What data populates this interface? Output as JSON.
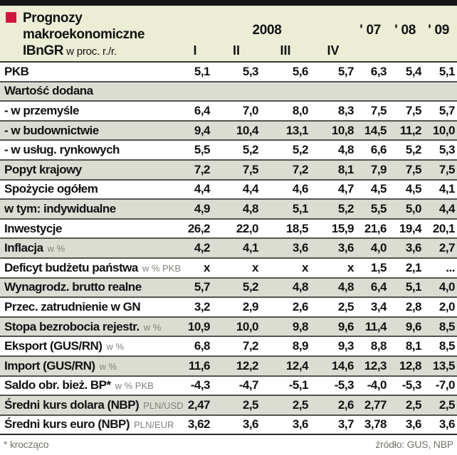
{
  "colors": {
    "header_bg": "#ECEDD5",
    "stripe_bg": "#DBDCD2",
    "accent_red": "#D3163F",
    "row_line": "#55544E",
    "muted_text": "#82827B"
  },
  "header": {
    "title_line1": "Prognozy",
    "title_line2": "makroekonomiczne",
    "title_bold3": "IBnGR",
    "title_unit": "w proc. r./r.",
    "year_span": "2008",
    "quarters": [
      "I",
      "II",
      "III",
      "IV"
    ],
    "years": [
      "' 07",
      "' 08",
      "' 09"
    ]
  },
  "table": {
    "rows": [
      {
        "label": "PKB",
        "unit": "",
        "values": [
          "5,1",
          "5,3",
          "5,6",
          "5,7",
          "6,3",
          "5,4",
          "5,1"
        ]
      },
      {
        "label": "Wartość dodana",
        "unit": "",
        "values": [
          "",
          "",
          "",
          "",
          "",
          "",
          ""
        ]
      },
      {
        "label": "- w przemyśle",
        "unit": "",
        "values": [
          "6,4",
          "7,0",
          "8,0",
          "8,3",
          "7,5",
          "7,5",
          "5,7"
        ]
      },
      {
        "label": "- w budownictwie",
        "unit": "",
        "values": [
          "9,4",
          "10,4",
          "13,1",
          "10,8",
          "14,5",
          "11,2",
          "10,0"
        ]
      },
      {
        "label": "- w usług. rynkowych",
        "unit": "",
        "values": [
          "5,5",
          "5,2",
          "5,2",
          "4,8",
          "6,6",
          "5,2",
          "5,3"
        ]
      },
      {
        "label": "Popyt krajowy",
        "unit": "",
        "values": [
          "7,2",
          "7,5",
          "7,2",
          "8,1",
          "7,9",
          "7,5",
          "7,5"
        ]
      },
      {
        "label": "Spożycie ogółem",
        "unit": "",
        "values": [
          "4,4",
          "4,4",
          "4,6",
          "4,7",
          "4,5",
          "4,5",
          "4,1"
        ]
      },
      {
        "label": "w tym: indywidualne",
        "unit": "",
        "values": [
          "4,9",
          "4,8",
          "5,1",
          "5,2",
          "5,5",
          "5,0",
          "4,4"
        ]
      },
      {
        "label": "Inwestycje",
        "unit": "",
        "values": [
          "26,2",
          "22,0",
          "18,5",
          "15,9",
          "21,6",
          "19,4",
          "20,1"
        ]
      },
      {
        "label": "Inflacja",
        "unit": "w %",
        "values": [
          "4,2",
          "4,1",
          "3,6",
          "3,6",
          "4,0",
          "3,6",
          "2,7"
        ]
      },
      {
        "label": "Deficyt budżetu państwa",
        "unit": "w % PKB",
        "values": [
          "x",
          "x",
          "x",
          "x",
          "1,5",
          "2,1",
          "..."
        ]
      },
      {
        "label": "Wynagrodz. brutto realne",
        "unit": "",
        "values": [
          "5,7",
          "5,2",
          "4,8",
          "4,8",
          "6,4",
          "5,1",
          "4,0"
        ]
      },
      {
        "label": "Przec. zatrudnienie w GN",
        "unit": "",
        "values": [
          "3,2",
          "2,9",
          "2,6",
          "2,5",
          "3,4",
          "2,8",
          "2,0"
        ]
      },
      {
        "label": "Stopa bezrobocia rejestr.",
        "unit": "w %",
        "values": [
          "10,9",
          "10,0",
          "9,8",
          "9,6",
          "11,4",
          "9,6",
          "8,5"
        ]
      },
      {
        "label": "Eksport (GUS/RN)",
        "unit": "w %",
        "values": [
          "6,8",
          "7,2",
          "8,9",
          "9,3",
          "8,8",
          "8,1",
          "8,5"
        ]
      },
      {
        "label": "Import (GUS/RN)",
        "unit": "w %",
        "values": [
          "11,6",
          "12,2",
          "12,4",
          "14,6",
          "12,3",
          "12,8",
          "13,5"
        ]
      },
      {
        "label": "Saldo obr. bież. BP*",
        "unit": "w % PKB",
        "values": [
          "-4,3",
          "-4,7",
          "-5,1",
          "-5,3",
          "-4,0",
          "-5,3",
          "-7,0"
        ]
      },
      {
        "label": "Średni kurs dolara (NBP)",
        "unit": "PLN/USD",
        "values": [
          "2,47",
          "2,5",
          "2,5",
          "2,6",
          "2,77",
          "2,5",
          "2,5"
        ]
      },
      {
        "label": "Średni kurs euro (NBP)",
        "unit": "PLN/EUR",
        "values": [
          "3,62",
          "3,6",
          "3,6",
          "3,7",
          "3,78",
          "3,6",
          "3,6"
        ]
      }
    ]
  },
  "footer": {
    "note": "* krocząco",
    "source": "źródło: GUS, NBP"
  },
  "chart_data": {
    "type": "table",
    "title": "Prognozy makroekonomiczne IBnGR w proc. r./r.",
    "columns": [
      "2008 I",
      "2008 II",
      "2008 III",
      "2008 IV",
      "'07",
      "'08",
      "'09"
    ],
    "rows": [
      {
        "label": "PKB",
        "values": [
          5.1,
          5.3,
          5.6,
          5.7,
          6.3,
          5.4,
          5.1
        ]
      },
      {
        "label": "Wartość dodana",
        "values": [
          null,
          null,
          null,
          null,
          null,
          null,
          null
        ]
      },
      {
        "label": "- w przemyśle",
        "values": [
          6.4,
          7.0,
          8.0,
          8.3,
          7.5,
          7.5,
          5.7
        ]
      },
      {
        "label": "- w budownictwie",
        "values": [
          9.4,
          10.4,
          13.1,
          10.8,
          14.5,
          11.2,
          10.0
        ]
      },
      {
        "label": "- w usług. rynkowych",
        "values": [
          5.5,
          5.2,
          5.2,
          4.8,
          6.6,
          5.2,
          5.3
        ]
      },
      {
        "label": "Popyt krajowy",
        "values": [
          7.2,
          7.5,
          7.2,
          8.1,
          7.9,
          7.5,
          7.5
        ]
      },
      {
        "label": "Spożycie ogółem",
        "values": [
          4.4,
          4.4,
          4.6,
          4.7,
          4.5,
          4.5,
          4.1
        ]
      },
      {
        "label": "w tym: indywidualne",
        "values": [
          4.9,
          4.8,
          5.1,
          5.2,
          5.5,
          5.0,
          4.4
        ]
      },
      {
        "label": "Inwestycje",
        "values": [
          26.2,
          22.0,
          18.5,
          15.9,
          21.6,
          19.4,
          20.1
        ]
      },
      {
        "label": "Inflacja (w %)",
        "values": [
          4.2,
          4.1,
          3.6,
          3.6,
          4.0,
          3.6,
          2.7
        ]
      },
      {
        "label": "Deficyt budżetu państwa (w % PKB)",
        "values": [
          null,
          null,
          null,
          null,
          1.5,
          2.1,
          null
        ]
      },
      {
        "label": "Wynagrodz. brutto realne",
        "values": [
          5.7,
          5.2,
          4.8,
          4.8,
          6.4,
          5.1,
          4.0
        ]
      },
      {
        "label": "Przec. zatrudnienie w GN",
        "values": [
          3.2,
          2.9,
          2.6,
          2.5,
          3.4,
          2.8,
          2.0
        ]
      },
      {
        "label": "Stopa bezrobocia rejestr. (w %)",
        "values": [
          10.9,
          10.0,
          9.8,
          9.6,
          11.4,
          9.6,
          8.5
        ]
      },
      {
        "label": "Eksport (GUS/RN) (w %)",
        "values": [
          6.8,
          7.2,
          8.9,
          9.3,
          8.8,
          8.1,
          8.5
        ]
      },
      {
        "label": "Import (GUS/RN) (w %)",
        "values": [
          11.6,
          12.2,
          12.4,
          14.6,
          12.3,
          12.8,
          13.5
        ]
      },
      {
        "label": "Saldo obr. bież. BP* (w % PKB)",
        "values": [
          -4.3,
          -4.7,
          -5.1,
          -5.3,
          -4.0,
          -5.3,
          -7.0
        ]
      },
      {
        "label": "Średni kurs dolara (NBP) PLN/USD",
        "values": [
          2.47,
          2.5,
          2.5,
          2.6,
          2.77,
          2.5,
          2.5
        ]
      },
      {
        "label": "Średni kurs euro (NBP) PLN/EUR",
        "values": [
          3.62,
          3.6,
          3.6,
          3.7,
          3.78,
          3.6,
          3.6
        ]
      }
    ]
  }
}
